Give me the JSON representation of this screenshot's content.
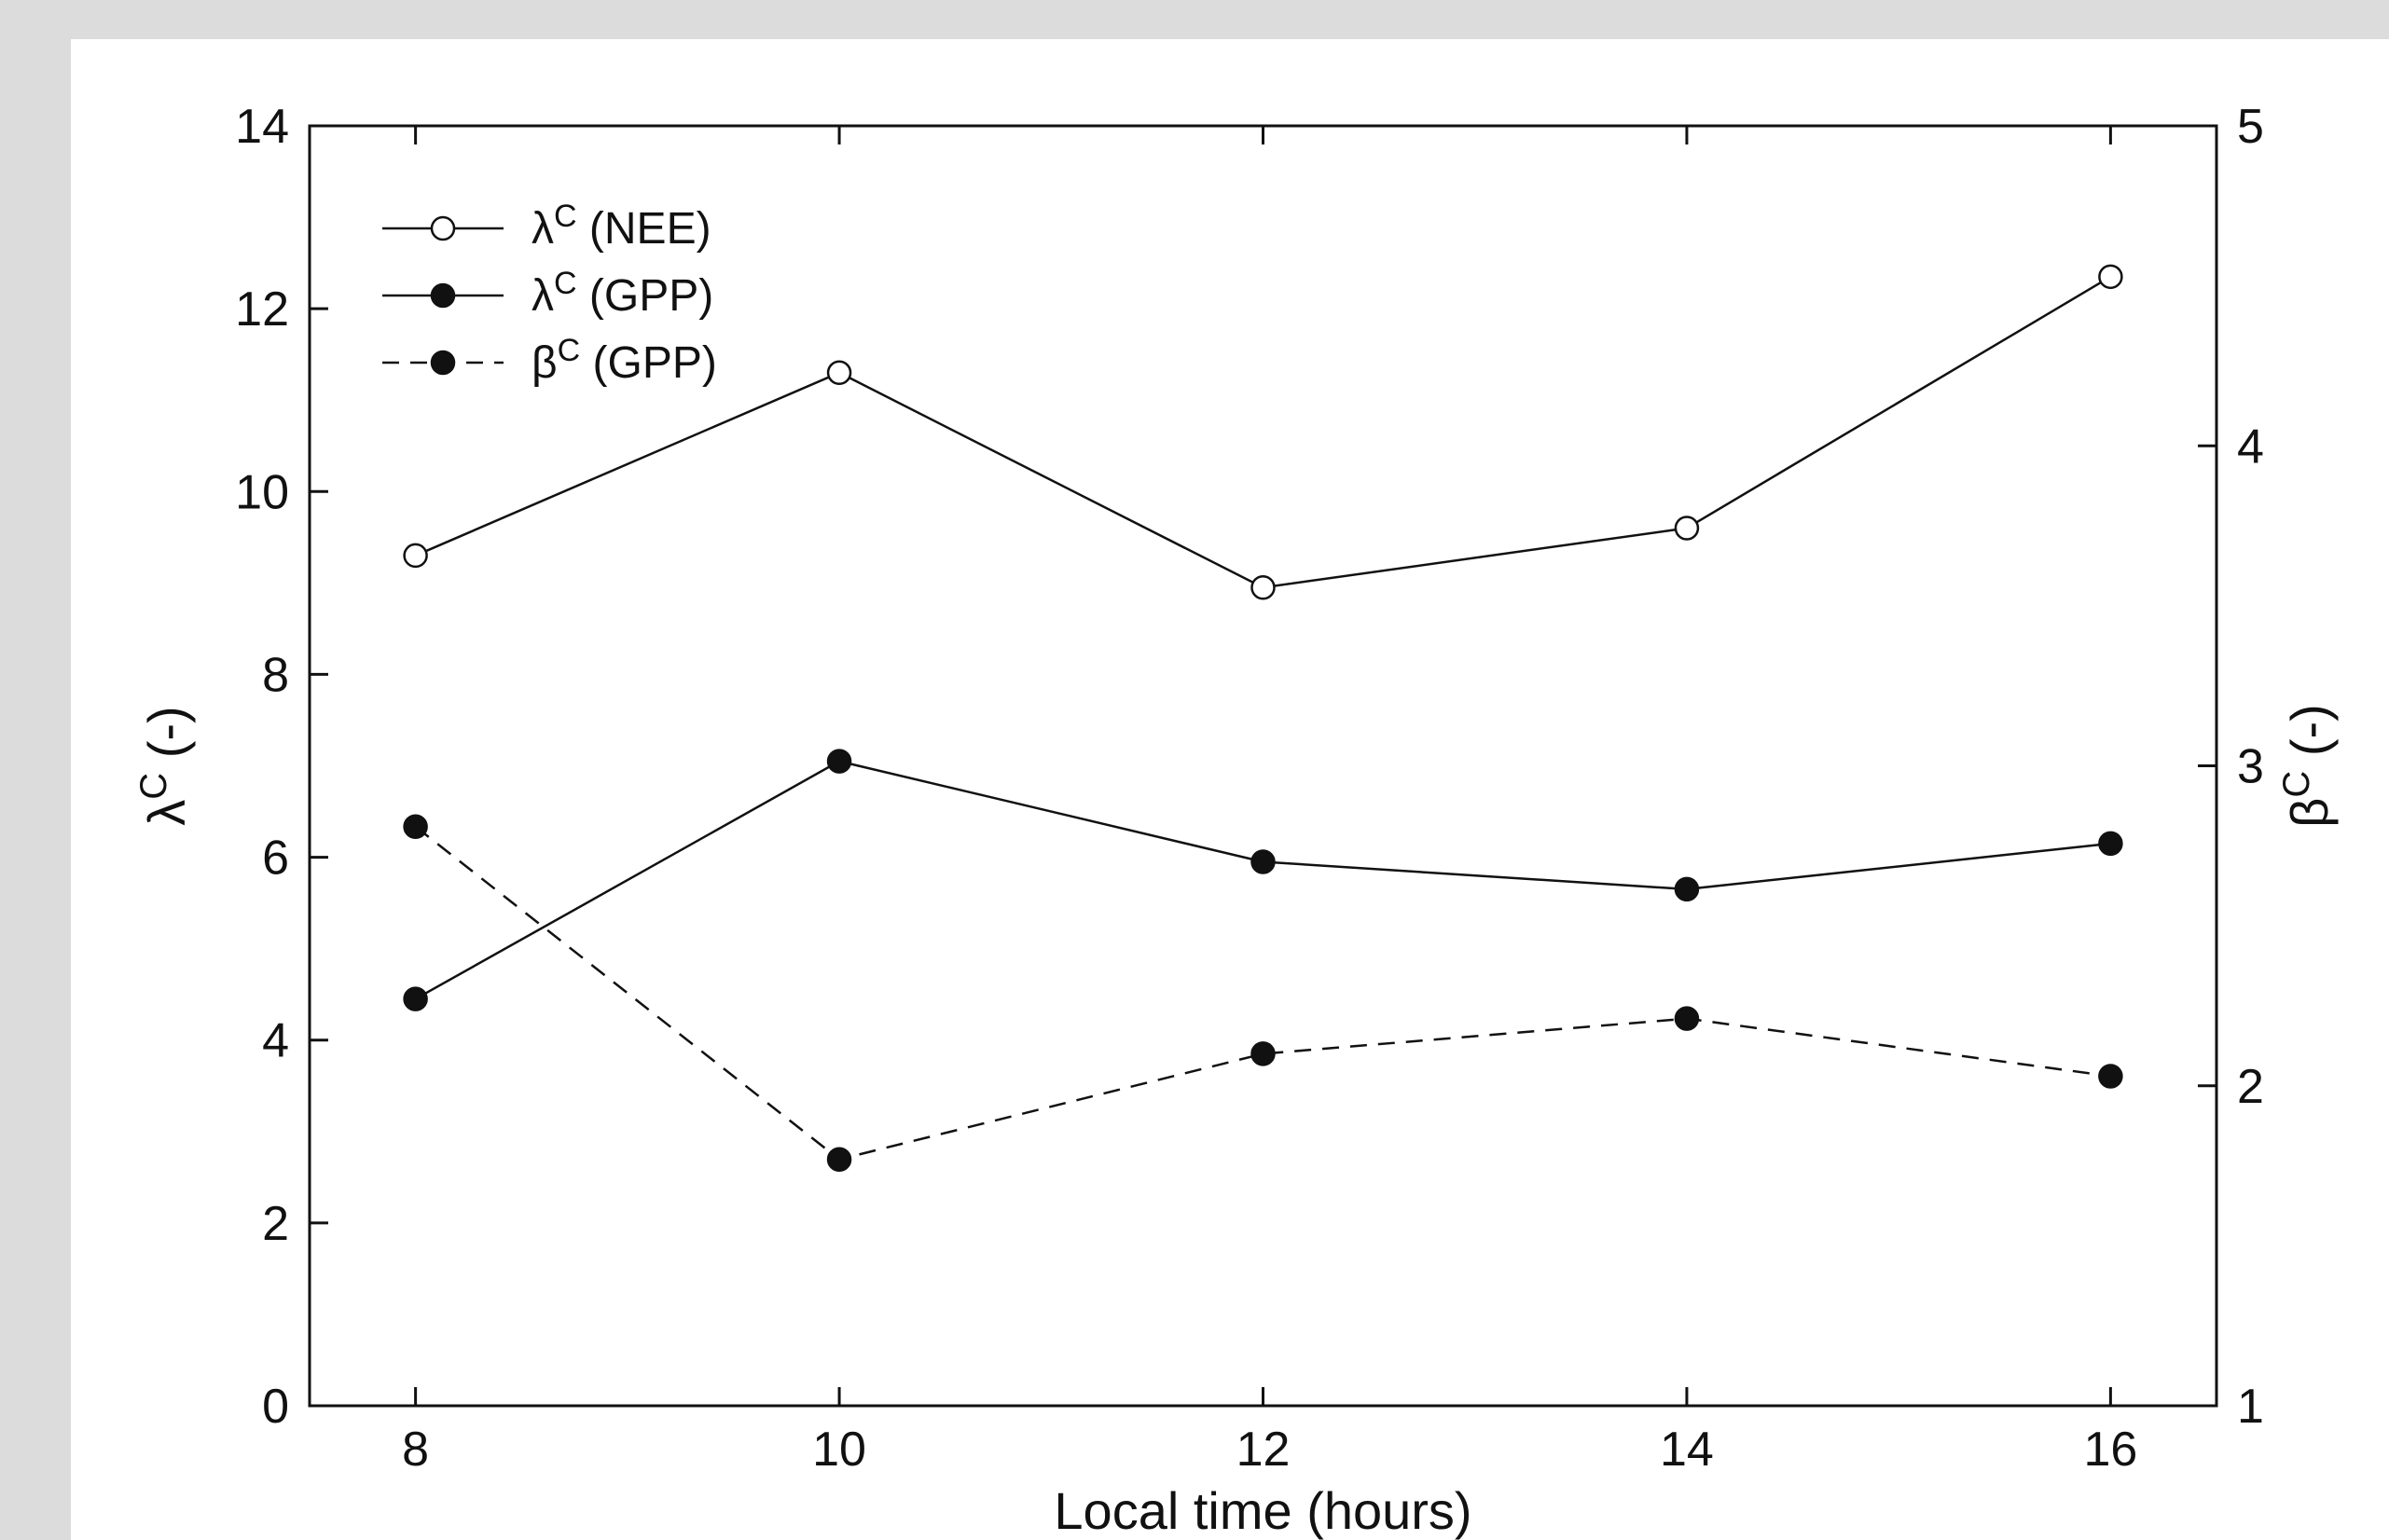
{
  "chart_data": {
    "type": "line",
    "xlabel": "Local time (hours)",
    "ylabel_left": {
      "symbol": "λ",
      "sup": "C",
      "rest": " (-)"
    },
    "ylabel_right": {
      "symbol": "β",
      "sup": "C",
      "rest": " (-)"
    },
    "x": [
      8,
      10,
      12,
      14,
      16
    ],
    "xticks": [
      8,
      10,
      12,
      14,
      16
    ],
    "xlim": [
      7.5,
      16.5
    ],
    "ylim_left": [
      0,
      14
    ],
    "yticks_left": [
      0,
      2,
      4,
      6,
      8,
      10,
      12,
      14
    ],
    "ylim_right": [
      1,
      5
    ],
    "yticks_right": [
      1,
      2,
      3,
      4,
      5
    ],
    "grid": false,
    "legend_position": "top-left",
    "series": [
      {
        "name": "(NEE)",
        "symbol": "λ",
        "sup": "C",
        "axis": "left",
        "marker": "open-circle",
        "line": "solid",
        "values": [
          9.3,
          11.3,
          8.95,
          9.6,
          12.35
        ]
      },
      {
        "name": "(GPP)",
        "symbol": "λ",
        "sup": "C",
        "axis": "left",
        "marker": "filled-circle",
        "line": "solid",
        "values": [
          4.45,
          7.05,
          5.95,
          5.65,
          6.15
        ]
      },
      {
        "name": "(GPP)",
        "symbol": "β",
        "sup": "C",
        "axis": "right",
        "marker": "filled-circle",
        "line": "dashed",
        "values": [
          2.81,
          1.77,
          2.1,
          2.21,
          2.03
        ]
      }
    ]
  }
}
